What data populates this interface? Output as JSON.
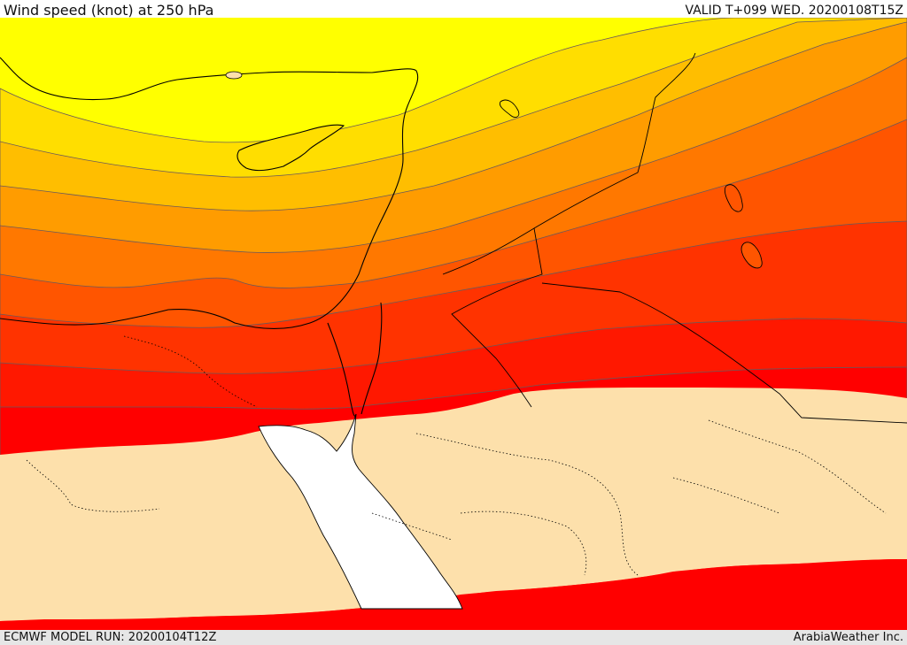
{
  "header": {
    "title": "Wind speed (knot) at 250 hPa",
    "valid": "VALID T+099 WED. 20200108T15Z"
  },
  "footer": {
    "model_run": "ECMWF MODEL RUN: 20200104T12Z",
    "credit": "ArabiaWeather Inc."
  },
  "map": {
    "field": "wind speed at 250 hPa",
    "palette": [
      "#ffff00",
      "#ffde00",
      "#ffbe00",
      "#ff9c00",
      "#ff7800",
      "#ff5500",
      "#ff3300",
      "#ff1800",
      "#ff0000",
      "#fde0ab"
    ],
    "sea_color": "#ffffff",
    "border_color": "#000000"
  }
}
